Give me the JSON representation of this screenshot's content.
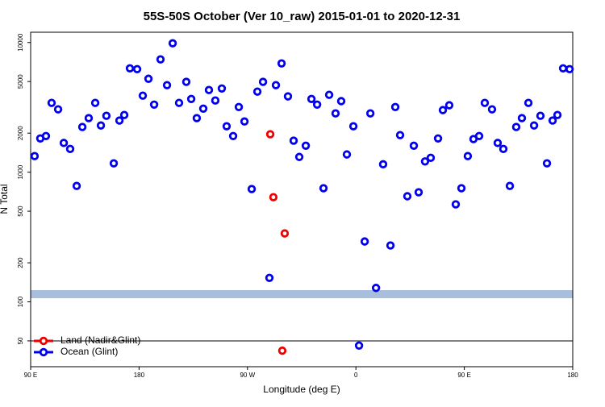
{
  "chart_data": {
    "type": "scatter",
    "title": "55S-50S October (Ver 10_raw)   2015-01-01 to 2020-12-31",
    "x_label": "Longitude (deg E)",
    "y_label": "N Total",
    "xlim": [
      90,
      540
    ],
    "xticks": [
      {
        "value": 90,
        "label": "90 E"
      },
      180,
      {
        "value": 270,
        "label": "90 W"
      },
      {
        "value": 360,
        "label": "0"
      },
      {
        "value": 450,
        "label": "90 E"
      },
      {
        "value": 540,
        "label": "180"
      }
    ],
    "ylim": [
      31.6,
      12000
    ],
    "yticks": [
      50,
      100,
      200,
      500,
      1000,
      2000,
      5000,
      10000
    ],
    "y_scale": "log",
    "legend": "lower left",
    "series": [
      {
        "name": "Land (Nadir&Glint)",
        "color": "#ee0000",
        "x": [
          288.9,
          291.5,
          300.9,
          298.9
        ],
        "values": [
          1960,
          641,
          337,
          42
        ]
      },
      {
        "name": "Ocean (Glint)",
        "color": "#0000ee",
        "x": [
          93.3,
          98.0,
          102.7,
          107.4,
          112.8,
          117.5,
          122.8,
          128.2,
          132.9,
          138.2,
          143.6,
          148.3,
          152.9,
          159.0,
          163.7,
          167.7,
          172.4,
          178.4,
          183.1,
          187.8,
          192.5,
          197.8,
          203.2,
          207.9,
          213.2,
          219.2,
          223.3,
          227.9,
          233.3,
          238.0,
          243.3,
          248.7,
          252.7,
          258.1,
          262.8,
          267.5,
          273.5,
          278.2,
          282.9,
          288.2,
          293.6,
          298.3,
          303.6,
          308.3,
          313.0,
          318.4,
          323.1,
          327.8,
          333.1,
          337.8,
          343.1,
          347.8,
          352.5,
          357.9,
          362.6,
          367.3,
          372.0,
          376.7,
          382.6,
          388.7,
          392.7,
          396.7,
          402.7,
          408.1,
          412.1,
          417.4,
          422.1,
          428.2,
          432.2,
          437.5,
          442.9,
          447.6,
          452.9,
          457.6,
          462.3,
          467.0,
          473.0,
          477.7,
          482.4,
          487.8,
          493.1,
          497.8,
          503.2,
          507.9,
          513.2,
          518.6,
          523.3,
          527.3,
          532.0,
          537.4
        ],
        "values": [
          1330,
          1820,
          1900,
          3420,
          3050,
          1680,
          1510,
          783,
          2230,
          2610,
          3420,
          2290,
          2720,
          1170,
          2500,
          2760,
          6320,
          6230,
          3890,
          5250,
          3320,
          7410,
          4690,
          9860,
          3420,
          4970,
          3670,
          2610,
          3090,
          4300,
          3570,
          4420,
          2260,
          1900,
          3180,
          2460,
          741,
          4180,
          4970,
          153,
          4690,
          6900,
          3840,
          1750,
          1310,
          1600,
          3670,
          3320,
          752,
          3950,
          2840,
          3530,
          1370,
          2260,
          46,
          292,
          2840,
          128,
          1150,
          272,
          3180,
          1930,
          652,
          1600,
          700,
          1210,
          1290,
          1820,
          3010,
          3280,
          565,
          752,
          1330,
          1800,
          1900,
          3420,
          3050,
          1680,
          1510,
          783,
          2230,
          2610,
          3420,
          2290,
          2720,
          1170,
          2500,
          2760,
          6320,
          6230
        ]
      }
    ]
  }
}
